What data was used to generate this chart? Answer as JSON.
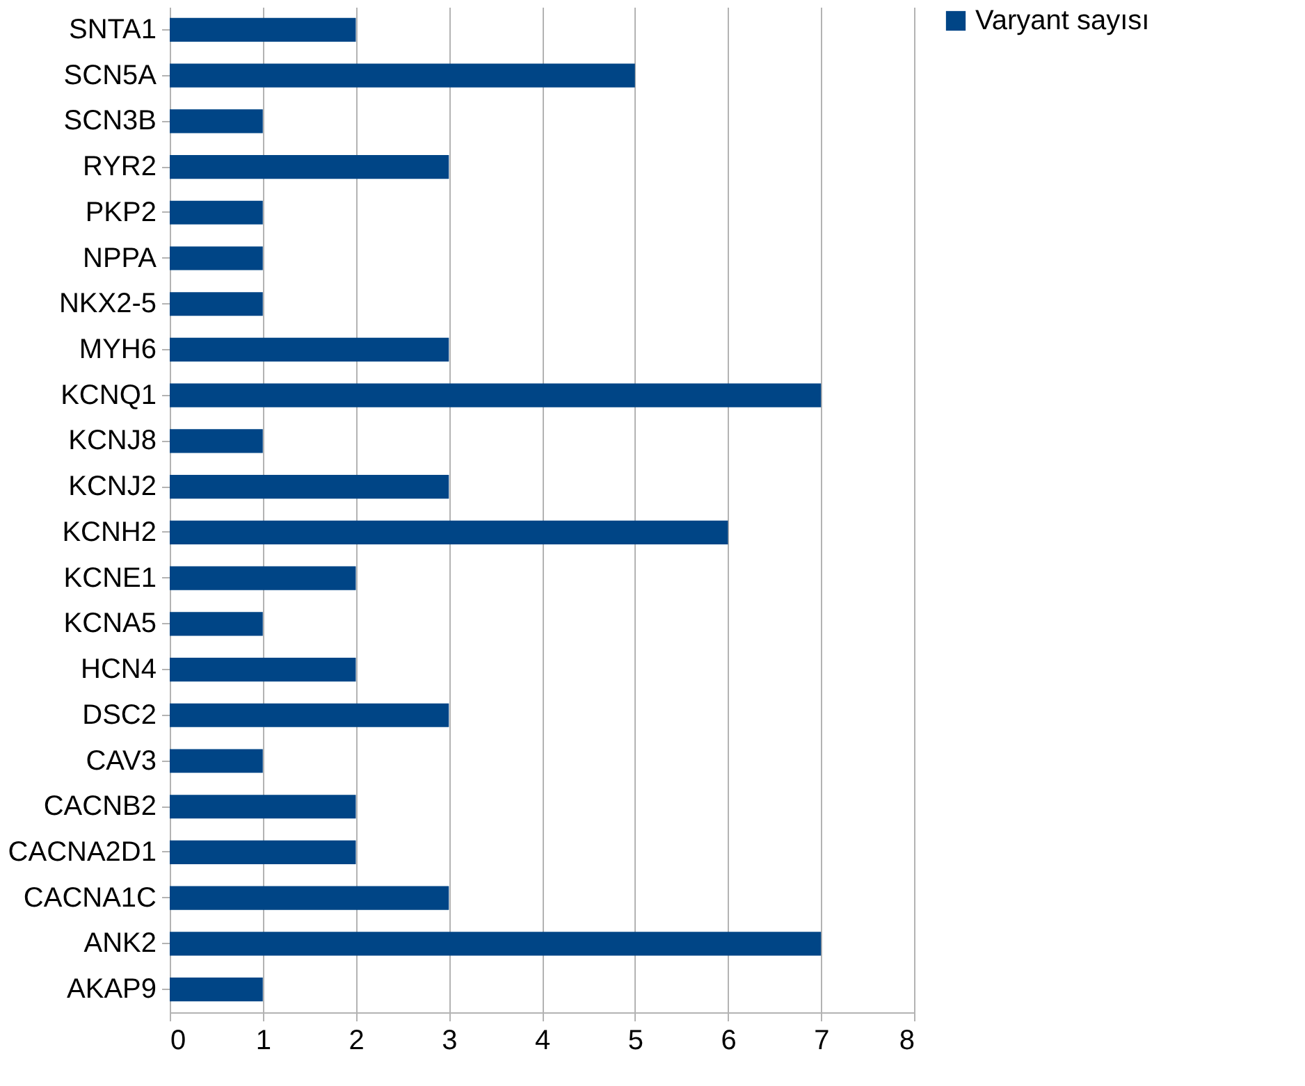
{
  "chart_data": {
    "type": "bar",
    "orientation": "horizontal",
    "categories": [
      "SNTA1",
      "SCN5A",
      "SCN3B",
      "RYR2",
      "PKP2",
      "NPPA",
      "NKX2-5",
      "MYH6",
      "KCNQ1",
      "KCNJ8",
      "KCNJ2",
      "KCNH2",
      "KCNE1",
      "KCNA5",
      "HCN4",
      "DSC2",
      "CAV3",
      "CACNB2",
      "CACNA2D1",
      "CACNA1C",
      "ANK2",
      "AKAP9"
    ],
    "series": [
      {
        "name": "Varyant sayısı",
        "color": "#004586",
        "values": [
          2,
          5,
          1,
          3,
          1,
          1,
          1,
          3,
          7,
          1,
          3,
          6,
          2,
          1,
          2,
          3,
          1,
          2,
          2,
          3,
          7,
          1
        ]
      }
    ],
    "xlim": [
      0,
      8
    ],
    "xticks": [
      0,
      1,
      2,
      3,
      4,
      5,
      6,
      7,
      8
    ],
    "grid": "x",
    "legend": "right"
  }
}
